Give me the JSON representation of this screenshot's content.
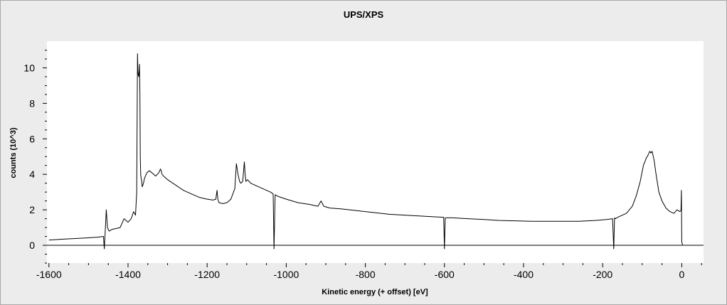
{
  "chart_data": {
    "type": "line",
    "title": "UPS/XPS",
    "xlabel": "Kinetic energy (+ offset) [eV]",
    "ylabel": "counts (10^3)",
    "xlim": [
      -1605,
      55
    ],
    "ylim": [
      -1.0,
      11.5
    ],
    "x_ticks": [
      -1600,
      -1400,
      -1200,
      -1000,
      -800,
      -600,
      -400,
      -200,
      0
    ],
    "x_tick_labels": [
      "-1600",
      "-1400",
      "-1200",
      "-1000",
      "-800",
      "-600",
      "-400",
      "-200",
      "0"
    ],
    "y_ticks": [
      0,
      2,
      4,
      6,
      8,
      10
    ],
    "y_tick_labels": [
      "0",
      "2",
      "4",
      "6",
      "8",
      "10"
    ],
    "zero_line": true,
    "grid": false,
    "legend": "none",
    "series": [
      {
        "x": [
          -1600,
          -1560,
          -1520,
          -1480,
          -1462,
          -1460,
          -1458,
          -1455,
          -1452,
          -1448,
          -1440,
          -1420,
          -1410,
          -1400,
          -1392,
          -1386,
          -1381,
          -1378,
          -1376,
          -1375,
          -1374,
          -1373,
          -1372,
          -1371,
          -1370,
          -1369,
          -1368,
          -1367,
          -1366,
          -1364,
          -1361,
          -1358,
          -1352,
          -1346,
          -1340,
          -1330,
          -1322,
          -1318,
          -1316,
          -1314,
          -1310,
          -1300,
          -1280,
          -1260,
          -1240,
          -1220,
          -1200,
          -1185,
          -1178,
          -1175,
          -1173,
          -1170,
          -1160,
          -1150,
          -1140,
          -1130,
          -1126,
          -1122,
          -1118,
          -1115,
          -1110,
          -1106,
          -1104,
          -1102,
          -1098,
          -1090,
          -1080,
          -1060,
          -1045,
          -1040,
          -1033,
          -1031,
          -1028,
          -1020,
          -1000,
          -970,
          -940,
          -920,
          -912,
          -905,
          -890,
          -860,
          -820,
          -780,
          -740,
          -700,
          -660,
          -620,
          -602,
          -600,
          -598,
          -580,
          -540,
          -500,
          -460,
          -420,
          -380,
          -340,
          -300,
          -260,
          -220,
          -190,
          -175,
          -172,
          -170,
          -168,
          -160,
          -140,
          -125,
          -115,
          -105,
          -97,
          -90,
          -85,
          -81,
          -78,
          -75,
          -70,
          -65,
          -58,
          -50,
          -40,
          -30,
          -20,
          -12,
          -5,
          -2,
          -1,
          0,
          1,
          2,
          5
        ],
        "y": [
          0.3,
          0.35,
          0.4,
          0.45,
          0.5,
          -0.2,
          0.6,
          2.0,
          1.0,
          0.8,
          0.9,
          1.0,
          1.5,
          1.3,
          1.5,
          1.9,
          1.7,
          3.0,
          10.8,
          9.8,
          9.6,
          9.5,
          9.8,
          10.2,
          8.5,
          5.0,
          4.0,
          3.8,
          3.7,
          3.3,
          3.5,
          3.8,
          4.1,
          4.2,
          4.1,
          3.9,
          4.1,
          4.3,
          4.2,
          4.0,
          3.9,
          3.7,
          3.4,
          3.1,
          2.9,
          2.7,
          2.6,
          2.55,
          2.6,
          3.1,
          2.6,
          2.4,
          2.35,
          2.4,
          2.6,
          3.2,
          4.6,
          4.0,
          3.6,
          3.5,
          3.6,
          4.7,
          4.0,
          3.6,
          3.7,
          3.5,
          3.4,
          3.2,
          3.05,
          3.0,
          2.9,
          -0.2,
          2.85,
          2.75,
          2.6,
          2.4,
          2.3,
          2.2,
          2.5,
          2.2,
          2.1,
          2.05,
          1.95,
          1.85,
          1.75,
          1.7,
          1.65,
          1.6,
          1.58,
          -0.2,
          1.55,
          1.55,
          1.5,
          1.45,
          1.4,
          1.38,
          1.35,
          1.35,
          1.35,
          1.35,
          1.4,
          1.45,
          1.5,
          -0.2,
          1.55,
          1.5,
          1.6,
          1.8,
          2.2,
          2.8,
          3.6,
          4.5,
          4.9,
          5.1,
          5.3,
          5.2,
          5.3,
          4.8,
          4.0,
          3.0,
          2.5,
          2.1,
          1.9,
          1.8,
          2.0,
          1.9,
          1.95,
          3.1,
          0.2,
          0.1,
          0.0,
          0.0
        ]
      }
    ]
  }
}
